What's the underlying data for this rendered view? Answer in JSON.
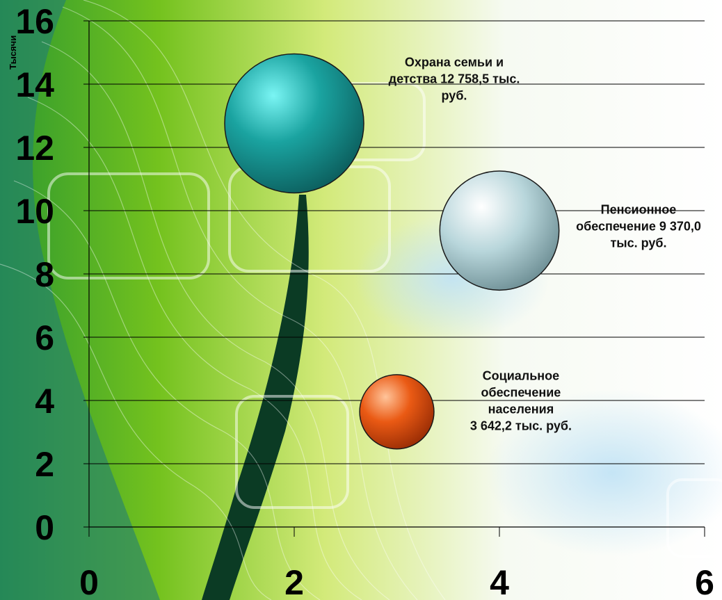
{
  "chart_data": {
    "type": "bubble",
    "x_axis": {
      "range": [
        0,
        6
      ],
      "ticks": [
        "0",
        "2",
        "4",
        "6"
      ]
    },
    "y_axis": {
      "range": [
        0,
        16
      ],
      "ticks": [
        "0",
        "2",
        "4",
        "6",
        "8",
        "10",
        "12",
        "14",
        "16"
      ],
      "unit_label": "Тысячи"
    },
    "grid": "horizontal",
    "series": [
      {
        "x": 2,
        "y": 12.7585,
        "size": 12758.5,
        "color": "#1a9a96",
        "label_lines": [
          "Охрана семьи и",
          "детства 12 758,5 тыс.",
          "руб."
        ]
      },
      {
        "x": 4,
        "y": 9.37,
        "size": 9370.0,
        "color": "#b9d9de",
        "label_lines": [
          "Пенсионное",
          "обеспечение 9 370,0",
          "тыс. руб."
        ]
      },
      {
        "x": 3,
        "y": 3.6422,
        "size": 3642.2,
        "color": "#e8581a",
        "label_lines": [
          "Социальное",
          "обеспечение",
          "населения",
          "3 642,2 тыс. руб."
        ]
      }
    ]
  }
}
